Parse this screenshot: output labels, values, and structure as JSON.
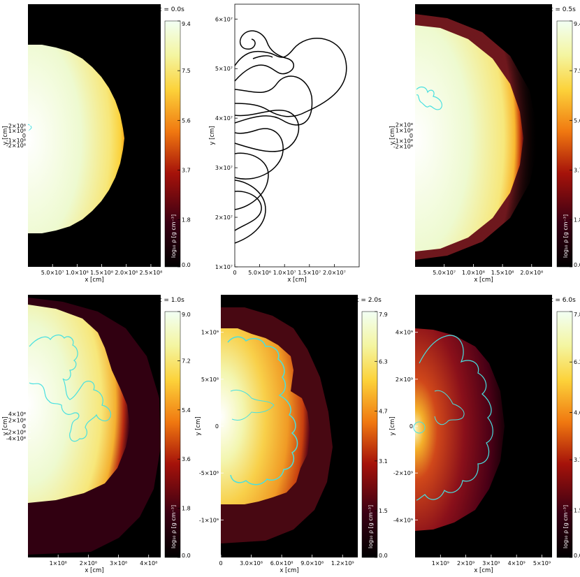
{
  "chart_data": [
    {
      "type": "heatmap",
      "time_label": "t = 0.0s",
      "xlabel": "x [cm]",
      "ylabel": "y [cm]",
      "xlim": [
        0,
        270000000
      ],
      "ylim": [
        -2650000000,
        2650000000
      ],
      "x_ticks": [
        "5.0×10⁷",
        "1.0×10⁸",
        "1.5×10⁸",
        "2.0×10⁸",
        "2.5×10⁸"
      ],
      "x_tick_values": [
        50000000,
        100000000,
        150000000,
        200000000,
        250000000
      ],
      "y_ticks": [
        "2×10⁸",
        "1×10⁸",
        "0",
        "-1×10⁸",
        "-2×10⁸"
      ],
      "y_tick_values": [
        200000000,
        100000000,
        0,
        -100000000,
        -200000000
      ],
      "colorbar": {
        "label": "log₁₀ ρ [g cm⁻³]",
        "ticks": [
          "9.4",
          "7.5",
          "5.6",
          "3.7",
          "1.8",
          "0.0"
        ],
        "tick_values": [
          9.4,
          7.5,
          5.6,
          3.7,
          1.8,
          0.0
        ]
      }
    },
    {
      "type": "line",
      "xlabel": "x [cm]",
      "ylabel": "y [cm]",
      "xlim": [
        0,
        25000000
      ],
      "ylim": [
        10000000,
        63000000
      ],
      "x_ticks": [
        "0",
        "5.0×10⁶",
        "1.0×10⁷",
        "1.5×10⁷",
        "2.0×10⁷"
      ],
      "x_tick_values": [
        0,
        5000000,
        10000000,
        15000000,
        20000000
      ],
      "y_ticks": [
        "6×10⁷",
        "5×10⁷",
        "4×10⁷",
        "3×10⁷",
        "2×10⁷",
        "1×10⁷"
      ],
      "y_tick_values": [
        60000000,
        50000000,
        40000000,
        30000000,
        20000000,
        10000000
      ]
    },
    {
      "type": "heatmap",
      "time_label": "t = 0.5s",
      "xlabel": "x [cm]",
      "ylabel": "y [cm]",
      "xlim": [
        0,
        235000000
      ],
      "ylim": [
        -2450000000,
        2450000000
      ],
      "x_ticks": [
        "5.0×10⁷",
        "1.0×10⁸",
        "1.5×10⁸",
        "2.0×10⁸"
      ],
      "x_tick_values": [
        50000000,
        100000000,
        150000000,
        200000000
      ],
      "y_ticks": [
        "2×10⁸",
        "1×10⁸",
        "0",
        "-1×10⁸",
        "-2×10⁸"
      ],
      "y_tick_values": [
        200000000,
        100000000,
        0,
        -100000000,
        -200000000
      ],
      "colorbar": {
        "label": "log₁₀ ρ [g cm⁻³]",
        "ticks": [
          "9.4",
          "7.5",
          "5.6",
          "3.7",
          "1.8",
          "0.0"
        ],
        "tick_values": [
          9.4,
          7.5,
          5.6,
          3.7,
          1.8,
          0.0
        ]
      }
    },
    {
      "type": "heatmap",
      "time_label": "t = 1.0s",
      "xlabel": "x [cm]",
      "ylabel": "y [cm]",
      "xlim": [
        0,
        440000000
      ],
      "ylim": [
        -4300000000,
        4300000000
      ],
      "x_ticks": [
        "1×10⁸",
        "2×10⁸",
        "3×10⁸",
        "4×10⁸"
      ],
      "x_tick_values": [
        100000000,
        200000000,
        300000000,
        400000000
      ],
      "y_ticks": [
        "4×10⁸",
        "2×10⁸",
        "0",
        "-2×10⁸",
        "-4×10⁸"
      ],
      "y_tick_values": [
        400000000,
        200000000,
        0,
        -200000000,
        -400000000
      ],
      "colorbar": {
        "label": "log₁₀ ρ [g cm⁻³]",
        "ticks": [
          "9.0",
          "7.2",
          "5.4",
          "3.6",
          "1.8",
          "0.0"
        ],
        "tick_values": [
          9.0,
          7.2,
          5.4,
          3.6,
          1.8,
          0.0
        ]
      }
    },
    {
      "type": "heatmap",
      "time_label": "t = 2.0s",
      "xlabel": "x [cm]",
      "ylabel": "y [cm]",
      "xlim": [
        0,
        1350000000
      ],
      "ylim": [
        -1400000000,
        1400000000
      ],
      "x_ticks": [
        "0",
        "3.0×10⁸",
        "6.0×10⁸",
        "9.0×10⁸",
        "1.2×10⁹"
      ],
      "x_tick_values": [
        0,
        300000000,
        600000000,
        900000000,
        1200000000
      ],
      "y_ticks": [
        "1×10⁹",
        "5×10⁸",
        "0",
        "-5×10⁸",
        "-1×10⁹"
      ],
      "y_tick_values": [
        1000000000,
        500000000,
        0,
        -500000000,
        -1000000000
      ],
      "colorbar": {
        "label": "log₁₀ ρ [g cm⁻³]",
        "ticks": [
          "7.9",
          "6.3",
          "4.7",
          "3.1",
          "1.5",
          "0.0"
        ],
        "tick_values": [
          7.9,
          6.3,
          4.7,
          3.1,
          1.5,
          0.0
        ]
      }
    },
    {
      "type": "heatmap",
      "time_label": "t = 6.0s",
      "xlabel": "x [cm]",
      "ylabel": "y [cm]",
      "xlim": [
        0,
        5400000000
      ],
      "ylim": [
        -5600000000,
        5600000000
      ],
      "x_ticks": [
        "1×10⁹",
        "2×10⁹",
        "3×10⁹",
        "4×10⁹",
        "5×10⁹"
      ],
      "x_tick_values": [
        1000000000,
        2000000000,
        3000000000,
        4000000000,
        5000000000
      ],
      "y_ticks": [
        "4×10⁹",
        "2×10⁹",
        "0",
        "-2×10⁹",
        "-4×10⁹"
      ],
      "y_tick_values": [
        4000000000,
        2000000000,
        0,
        -2000000000,
        -4000000000
      ],
      "colorbar": {
        "label": "log₁₀ ρ [g cm⁻³]",
        "ticks": [
          "7.8",
          "6.2",
          "4.6",
          "3.1",
          "1.5",
          "0.0"
        ],
        "tick_values": [
          7.8,
          6.2,
          4.6,
          3.1,
          1.5,
          0.0
        ]
      }
    }
  ],
  "colors": {
    "front_contour": "#48e0e0",
    "background": "#000000",
    "line": "#000000"
  }
}
